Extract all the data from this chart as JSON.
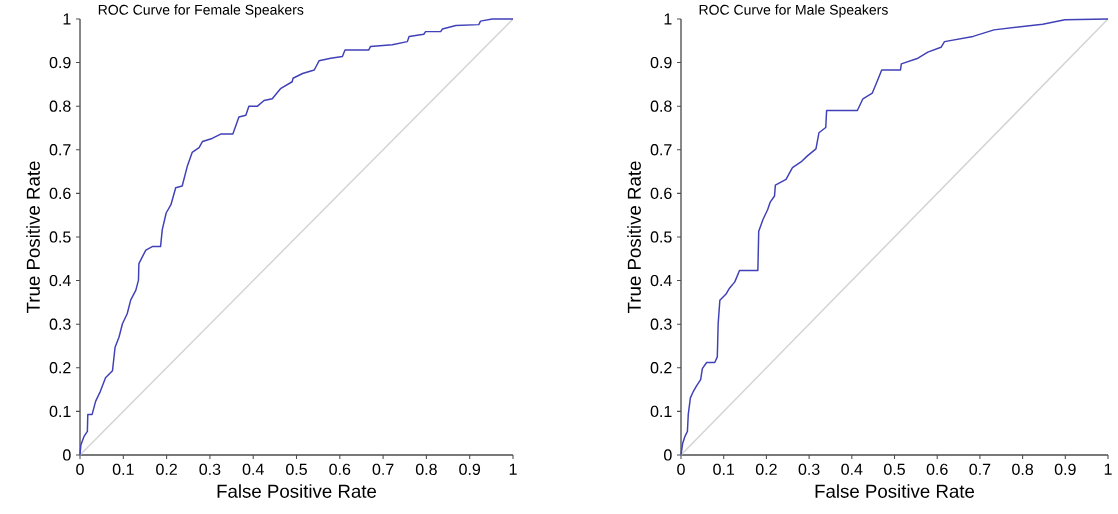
{
  "chart_data": [
    {
      "type": "line",
      "title": "ROC Curve for Female Speakers",
      "xlabel": "False Positive Rate",
      "ylabel": "True Positive Rate",
      "xlim": [
        0,
        1
      ],
      "ylim": [
        0,
        1
      ],
      "xticks": [
        0,
        0.1,
        0.2,
        0.3,
        0.4,
        0.5,
        0.6,
        0.7,
        0.8,
        0.9,
        1
      ],
      "yticks": [
        0,
        0.1,
        0.2,
        0.3,
        0.4,
        0.5,
        0.6,
        0.7,
        0.8,
        0.9,
        1
      ],
      "marker": "none",
      "series": [
        {
          "color": "#d3d3d3",
          "x": [
            0,
            1
          ],
          "values": [
            0,
            1
          ]
        },
        {
          "color": "#4040b8",
          "x": [
            0,
            0.002,
            0.009,
            0.017,
            0.018,
            0.028,
            0.036,
            0.047,
            0.059,
            0.075,
            0.081,
            0.09,
            0.098,
            0.109,
            0.117,
            0.129,
            0.135,
            0.136,
            0.152,
            0.167,
            0.186,
            0.19,
            0.199,
            0.21,
            0.221,
            0.236,
            0.248,
            0.259,
            0.275,
            0.283,
            0.305,
            0.325,
            0.353,
            0.367,
            0.383,
            0.39,
            0.41,
            0.425,
            0.444,
            0.463,
            0.49,
            0.492,
            0.514,
            0.541,
            0.552,
            0.579,
            0.606,
            0.612,
            0.667,
            0.671,
            0.721,
            0.756,
            0.76,
            0.794,
            0.798,
            0.833,
            0.837,
            0.868,
            0.921,
            0.925,
            0.952,
            1
          ],
          "values": [
            0,
            0.023,
            0.042,
            0.054,
            0.093,
            0.093,
            0.123,
            0.146,
            0.177,
            0.193,
            0.247,
            0.27,
            0.301,
            0.324,
            0.355,
            0.378,
            0.401,
            0.439,
            0.47,
            0.478,
            0.478,
            0.517,
            0.555,
            0.574,
            0.613,
            0.617,
            0.663,
            0.694,
            0.705,
            0.719,
            0.726,
            0.736,
            0.736,
            0.775,
            0.779,
            0.8,
            0.8,
            0.813,
            0.817,
            0.84,
            0.856,
            0.864,
            0.875,
            0.883,
            0.904,
            0.91,
            0.914,
            0.929,
            0.929,
            0.937,
            0.941,
            0.948,
            0.96,
            0.965,
            0.971,
            0.971,
            0.977,
            0.985,
            0.987,
            0.995,
            1,
            1
          ]
        }
      ]
    },
    {
      "type": "line",
      "title": "ROC Curve for Male Speakers",
      "xlabel": "False Positive Rate",
      "ylabel": "True Positive Rate",
      "xlim": [
        0,
        1
      ],
      "ylim": [
        0,
        1
      ],
      "xticks": [
        0,
        0.1,
        0.2,
        0.3,
        0.4,
        0.5,
        0.6,
        0.7,
        0.8,
        0.9,
        1
      ],
      "yticks": [
        0,
        0.1,
        0.2,
        0.3,
        0.4,
        0.5,
        0.6,
        0.7,
        0.8,
        0.9,
        1
      ],
      "marker": "none",
      "series": [
        {
          "color": "#d3d3d3",
          "x": [
            0,
            1
          ],
          "values": [
            0,
            1
          ]
        },
        {
          "color": "#4040b8",
          "x": [
            0,
            0.004,
            0.009,
            0.015,
            0.017,
            0.022,
            0.029,
            0.036,
            0.046,
            0.05,
            0.06,
            0.079,
            0.085,
            0.087,
            0.091,
            0.106,
            0.114,
            0.126,
            0.137,
            0.18,
            0.182,
            0.192,
            0.203,
            0.209,
            0.219,
            0.221,
            0.246,
            0.261,
            0.281,
            0.296,
            0.316,
            0.323,
            0.339,
            0.341,
            0.413,
            0.426,
            0.448,
            0.459,
            0.47,
            0.514,
            0.516,
            0.555,
            0.578,
            0.609,
            0.617,
            0.684,
            0.733,
            0.847,
            0.899,
            1
          ],
          "values": [
            0,
            0.027,
            0.042,
            0.054,
            0.093,
            0.131,
            0.146,
            0.158,
            0.173,
            0.198,
            0.212,
            0.212,
            0.225,
            0.301,
            0.355,
            0.37,
            0.383,
            0.397,
            0.423,
            0.423,
            0.513,
            0.54,
            0.563,
            0.58,
            0.594,
            0.619,
            0.632,
            0.659,
            0.672,
            0.686,
            0.702,
            0.739,
            0.751,
            0.79,
            0.79,
            0.817,
            0.83,
            0.856,
            0.883,
            0.883,
            0.897,
            0.91,
            0.924,
            0.935,
            0.948,
            0.96,
            0.975,
            0.988,
            0.998,
            1
          ]
        }
      ]
    }
  ]
}
